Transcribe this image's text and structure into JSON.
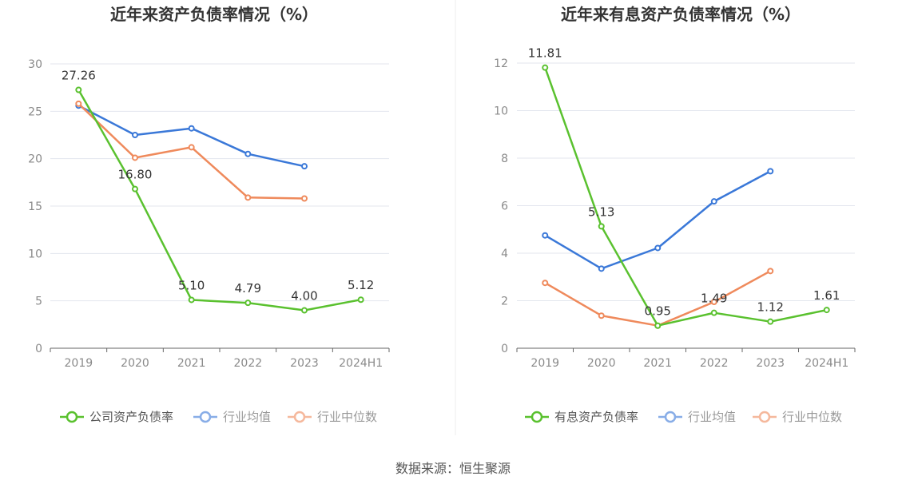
{
  "source": "数据来源：恒生聚源",
  "colors": {
    "company": "#5ac12f",
    "avg": "#3a78d8",
    "median": "#ef8a5c",
    "grid": "#e3e6ee",
    "axis": "#666666"
  },
  "chart_data": [
    {
      "type": "line",
      "title": "近年来资产负债率情况（%）",
      "categories": [
        "2019",
        "2020",
        "2021",
        "2022",
        "2023",
        "2024H1"
      ],
      "ylim": [
        0,
        30
      ],
      "yticks": [
        0,
        5,
        10,
        15,
        20,
        25,
        30
      ],
      "legend_position": "bottom",
      "series": [
        {
          "name": "公司资产负债率",
          "key": "company",
          "values": [
            27.26,
            16.8,
            5.1,
            4.79,
            4.0,
            5.12
          ],
          "labels": [
            "27.26",
            "16.80",
            "5.10",
            "4.79",
            "4.00",
            "5.12"
          ]
        },
        {
          "name": "行业均值",
          "key": "avg",
          "values": [
            25.6,
            22.5,
            23.2,
            20.5,
            19.2,
            null
          ]
        },
        {
          "name": "行业中位数",
          "key": "median",
          "values": [
            25.8,
            20.1,
            21.2,
            15.9,
            15.8,
            null
          ]
        }
      ]
    },
    {
      "type": "line",
      "title": "近年来有息资产负债率情况（%）",
      "categories": [
        "2019",
        "2020",
        "2021",
        "2022",
        "2023",
        "2024H1"
      ],
      "ylim": [
        0,
        12
      ],
      "yticks": [
        0,
        2,
        4,
        6,
        8,
        10,
        12
      ],
      "legend_position": "bottom",
      "series": [
        {
          "name": "有息资产负债率",
          "key": "company",
          "values": [
            11.81,
            5.13,
            0.95,
            1.49,
            1.12,
            1.61
          ],
          "labels": [
            "11.81",
            "5.13",
            "0.95",
            "1.49",
            "1.12",
            "1.61"
          ]
        },
        {
          "name": "行业均值",
          "key": "avg",
          "values": [
            4.75,
            3.35,
            4.22,
            6.18,
            7.45,
            null
          ]
        },
        {
          "name": "行业中位数",
          "key": "median",
          "values": [
            2.75,
            1.37,
            0.95,
            1.95,
            3.25,
            null
          ]
        }
      ]
    }
  ]
}
